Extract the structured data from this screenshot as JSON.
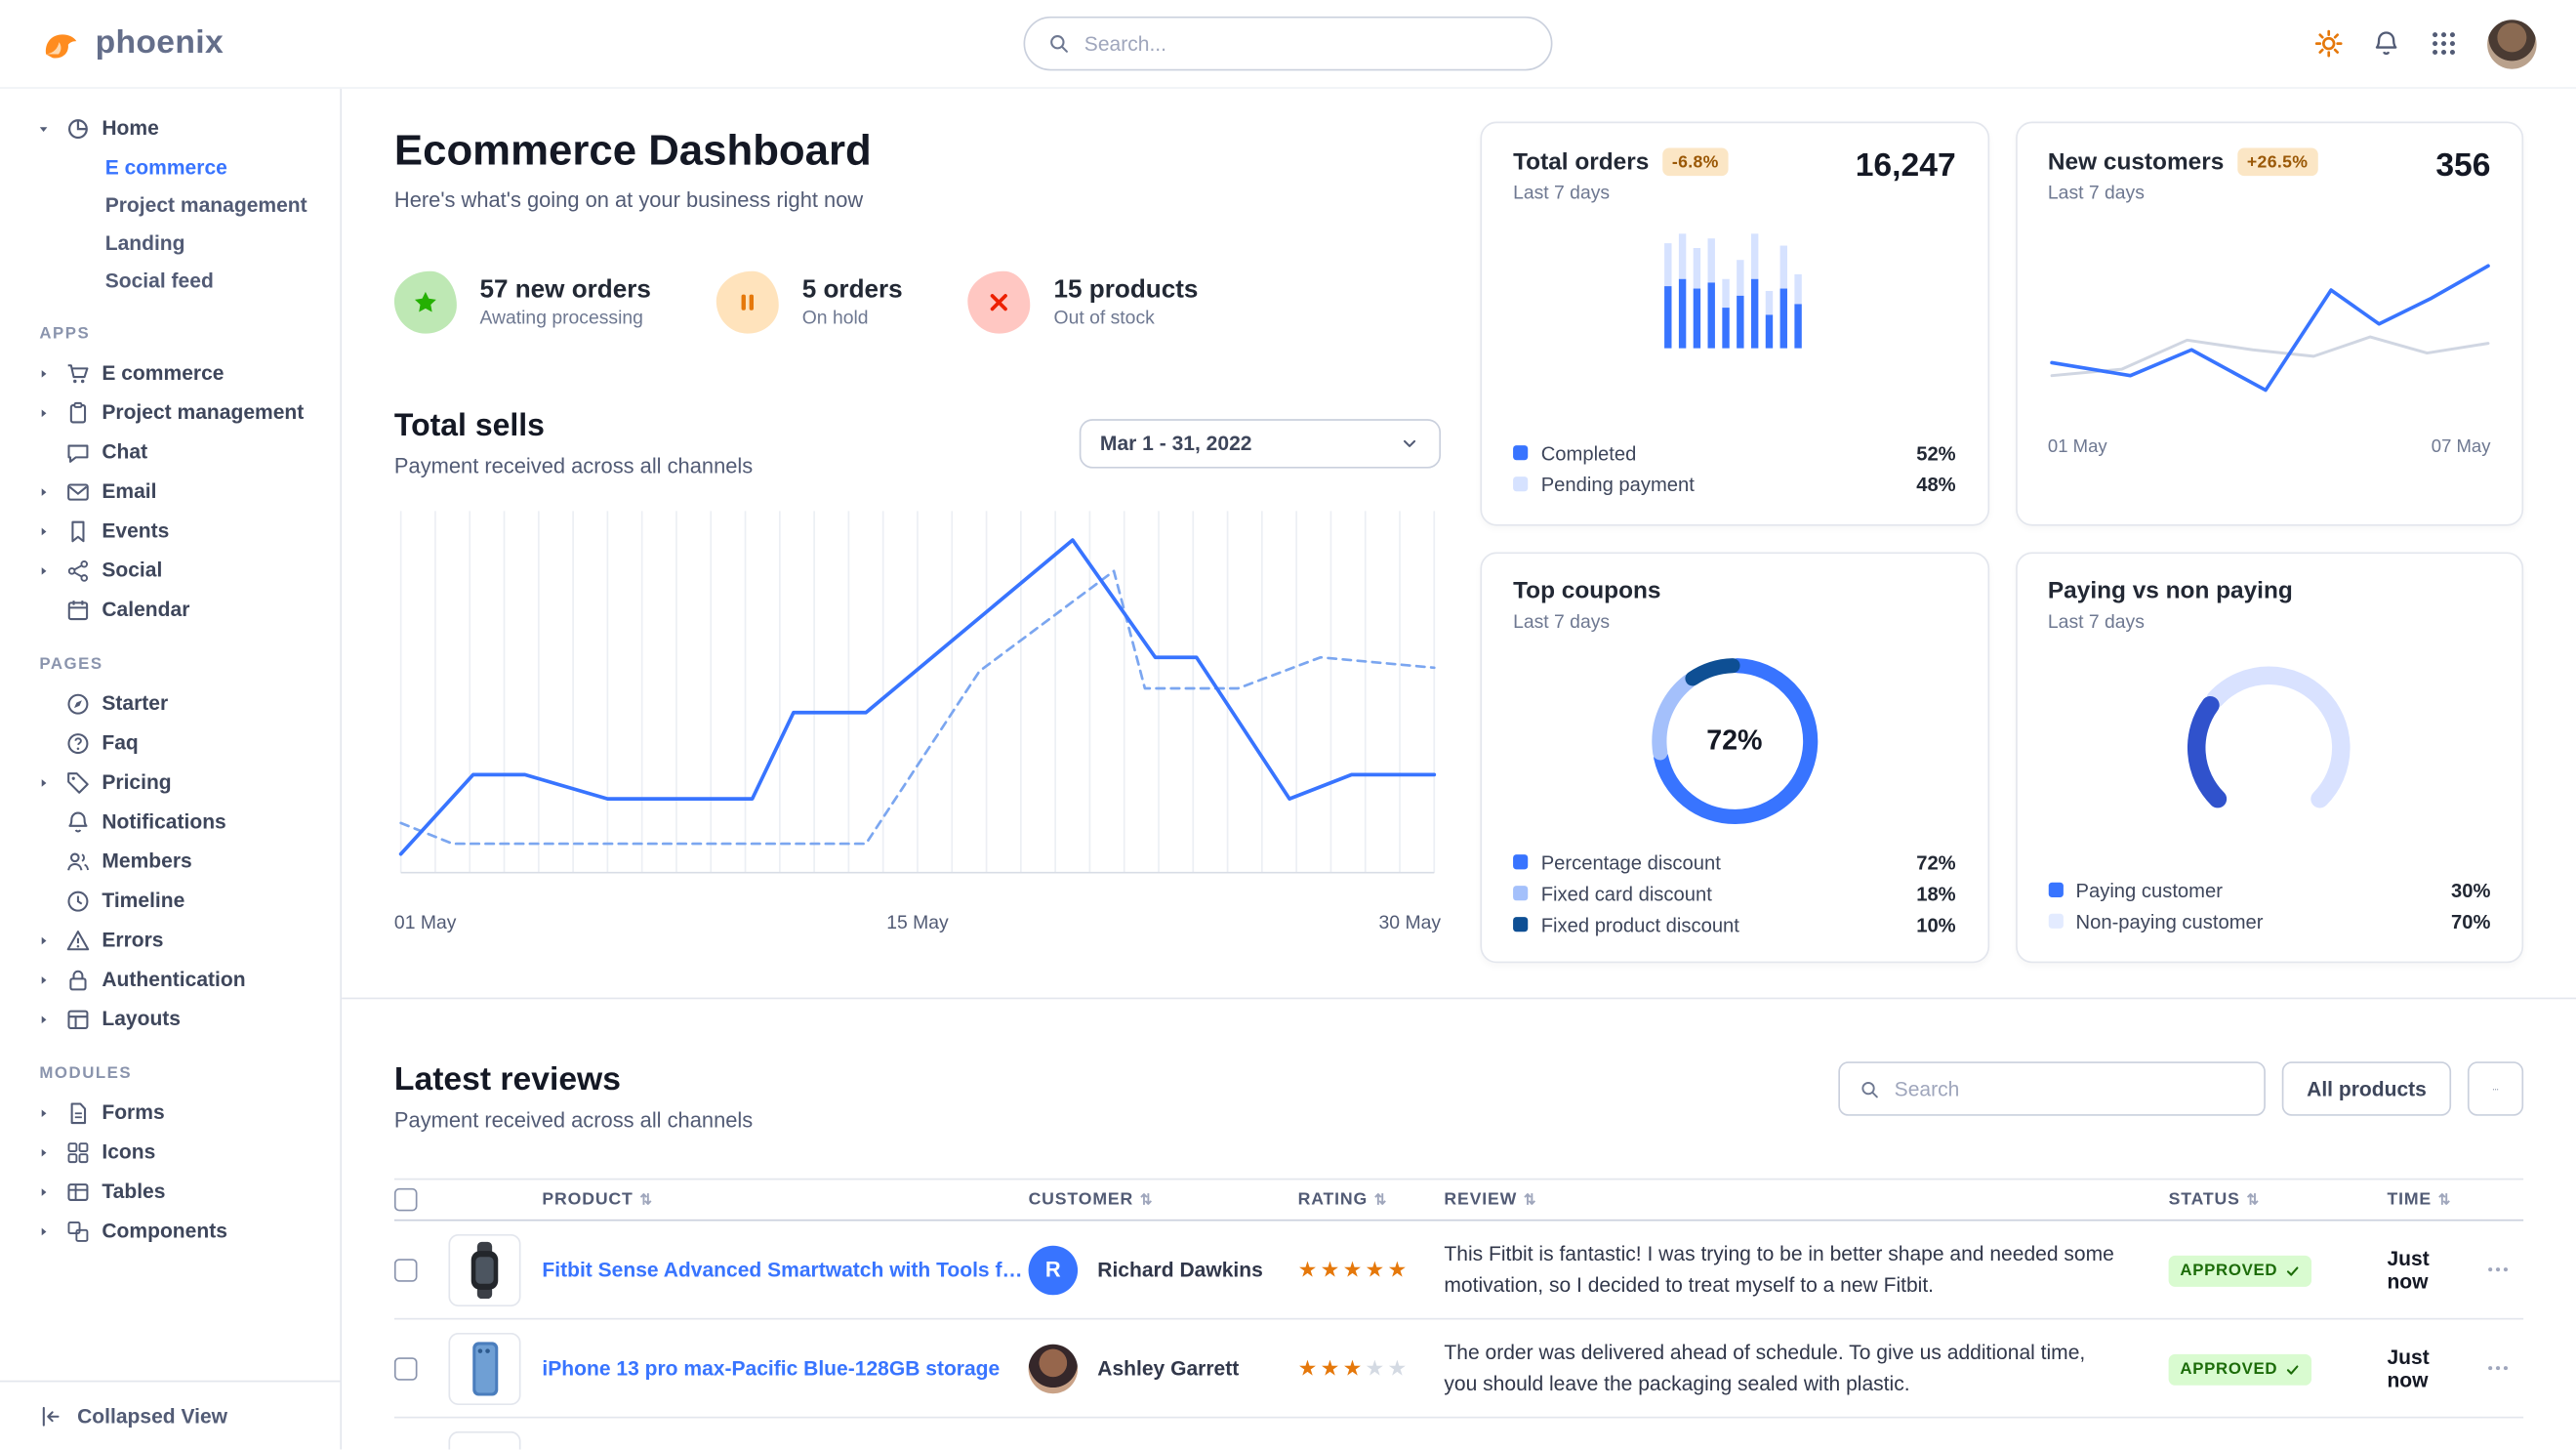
{
  "brand": {
    "name": "phoenix"
  },
  "topbar": {
    "search_placeholder": "Search...",
    "icons": {
      "theme": "sun",
      "notifications": "bell",
      "apps": "grid9",
      "profile": "avatar"
    }
  },
  "sidebar": {
    "home": {
      "label": "Home",
      "icon": "pie",
      "expanded": true,
      "children": [
        {
          "label": "E commerce",
          "active": true
        },
        {
          "label": "Project management",
          "active": false
        },
        {
          "label": "Landing",
          "active": false
        },
        {
          "label": "Social feed",
          "active": false
        }
      ]
    },
    "sections": [
      {
        "title": "APPS",
        "items": [
          {
            "label": "E commerce",
            "icon": "cart",
            "caret": true
          },
          {
            "label": "Project management",
            "icon": "clipboard",
            "caret": true
          },
          {
            "label": "Chat",
            "icon": "chat",
            "caret": false
          },
          {
            "label": "Email",
            "icon": "mail",
            "caret": true
          },
          {
            "label": "Events",
            "icon": "bookmark",
            "caret": true
          },
          {
            "label": "Social",
            "icon": "share",
            "caret": true
          },
          {
            "label": "Calendar",
            "icon": "calendar",
            "caret": false
          }
        ]
      },
      {
        "title": "PAGES",
        "items": [
          {
            "label": "Starter",
            "icon": "compass",
            "caret": false
          },
          {
            "label": "Faq",
            "icon": "help",
            "caret": false
          },
          {
            "label": "Pricing",
            "icon": "tag",
            "caret": true
          },
          {
            "label": "Notifications",
            "icon": "bell",
            "caret": false
          },
          {
            "label": "Members",
            "icon": "users",
            "caret": false
          },
          {
            "label": "Timeline",
            "icon": "clock",
            "caret": false
          },
          {
            "label": "Errors",
            "icon": "warning",
            "caret": true
          },
          {
            "label": "Authentication",
            "icon": "lock",
            "caret": true
          },
          {
            "label": "Layouts",
            "icon": "layout",
            "caret": true
          }
        ]
      },
      {
        "title": "MODULES",
        "items": [
          {
            "label": "Forms",
            "icon": "file",
            "caret": true
          },
          {
            "label": "Icons",
            "icon": "grid4",
            "caret": true
          },
          {
            "label": "Tables",
            "icon": "table",
            "caret": true
          },
          {
            "label": "Components",
            "icon": "components",
            "caret": true
          }
        ]
      }
    ],
    "collapsed_view_label": "Collapsed View"
  },
  "page": {
    "title": "Ecommerce Dashboard",
    "subtitle": "Here's what's going on at your business right now"
  },
  "stats": [
    {
      "title": "57 new orders",
      "subtitle": "Awating processing",
      "icon": "star",
      "icon_color": "#25b003",
      "bg": "#bee8b4"
    },
    {
      "title": "5 orders",
      "subtitle": "On hold",
      "icon": "pause",
      "icon_color": "#e5780b",
      "bg": "#ffe3bc"
    },
    {
      "title": "15 products",
      "subtitle": "Out of stock",
      "icon": "x",
      "icon_color": "#ed2000",
      "bg": "#ffc7c2"
    }
  ],
  "total_sells": {
    "title": "Total sells",
    "subtitle": "Payment received across all channels",
    "date_filter": "Mar 1 - 31, 2022",
    "x_labels": [
      "01 May",
      "15 May",
      "30 May"
    ]
  },
  "cards": {
    "total_orders": {
      "title": "Total orders",
      "badge": "-6.8%",
      "period": "Last 7 days",
      "value": "16,247",
      "legend": [
        {
          "label": "Completed",
          "value": "52%",
          "color": "#3874ff"
        },
        {
          "label": "Pending payment",
          "value": "48%",
          "color": "#d6e2ff"
        }
      ]
    },
    "new_customers": {
      "title": "New customers",
      "badge": "+26.5%",
      "period": "Last 7 days",
      "value": "356",
      "x_labels": [
        "01 May",
        "07 May"
      ]
    },
    "top_coupons": {
      "title": "Top coupons",
      "period": "Last 7 days",
      "center_value": "72%",
      "legend": [
        {
          "label": "Percentage discount",
          "value": "72%",
          "color": "#3874ff"
        },
        {
          "label": "Fixed card discount",
          "value": "18%",
          "color": "#a4c0fb"
        },
        {
          "label": "Fixed product discount",
          "value": "10%",
          "color": "#0e4f94"
        }
      ]
    },
    "paying": {
      "title": "Paying vs non paying",
      "period": "Last 7 days",
      "legend": [
        {
          "label": "Paying customer",
          "value": "30%",
          "color": "#3874ff"
        },
        {
          "label": "Non-paying customer",
          "value": "70%",
          "color": "#e3ebff"
        }
      ]
    }
  },
  "reviews": {
    "title": "Latest reviews",
    "subtitle": "Payment received across all channels",
    "search_placeholder": "Search",
    "filter_button": "All products",
    "columns": [
      "PRODUCT",
      "CUSTOMER",
      "RATING",
      "REVIEW",
      "STATUS",
      "TIME"
    ],
    "rows": [
      {
        "product": "Fitbit Sense Advanced Smartwatch with Tools fo...",
        "thumb": "watch",
        "customer": "Richard Dawkins",
        "avatar": {
          "type": "initial",
          "text": "R",
          "color": "#3874ff"
        },
        "rating": 5,
        "review": "This Fitbit is fantastic! I was trying to be in better shape and needed some motivation, so I decided to treat myself to a new Fitbit.",
        "status": "APPROVED",
        "time": "Just now"
      },
      {
        "product": "iPhone 13 pro max-Pacific Blue-128GB storage",
        "thumb": "phone",
        "customer": "Ashley Garrett",
        "avatar": {
          "type": "photo"
        },
        "rating": 3,
        "review": "The order was delivered ahead of schedule. To give us additional time, you should leave the packaging sealed with plastic.",
        "status": "APPROVED",
        "time": "Just now"
      },
      {
        "partial": true
      }
    ]
  },
  "chart_data": [
    {
      "id": "total-sells",
      "type": "line",
      "title": "Total sells",
      "x_tick_labels": [
        "01 May",
        "15 May",
        "30 May"
      ],
      "grid": "vertical",
      "y_scale": "relative 0-100",
      "series": [
        {
          "name": "current period",
          "style": "solid",
          "color": "#3874ff",
          "points": [
            [
              0,
              3
            ],
            [
              7,
              26
            ],
            [
              12,
              26
            ],
            [
              20,
              19
            ],
            [
              34,
              19
            ],
            [
              38,
              44
            ],
            [
              45,
              44
            ],
            [
              65,
              94
            ],
            [
              73,
              60
            ],
            [
              77,
              60
            ],
            [
              86,
              19
            ],
            [
              92,
              26
            ],
            [
              100,
              26
            ]
          ]
        },
        {
          "name": "previous period",
          "style": "dashed",
          "color": "#7ba6f0",
          "points": [
            [
              0,
              12
            ],
            [
              5,
              6
            ],
            [
              13,
              6
            ],
            [
              45,
              6
            ],
            [
              56,
              56
            ],
            [
              69,
              85
            ],
            [
              72,
              51
            ],
            [
              81,
              51
            ],
            [
              89,
              60
            ],
            [
              100,
              57
            ]
          ]
        }
      ]
    },
    {
      "id": "total-orders",
      "type": "bar",
      "title": "Total orders",
      "stacked": true,
      "bars_total": [
        88,
        96,
        84,
        92,
        58,
        74,
        96,
        48,
        86,
        62
      ],
      "bars_completed": [
        52,
        58,
        50,
        55,
        34,
        44,
        58,
        28,
        50,
        37
      ],
      "colors": {
        "completed": "#3874ff",
        "pending": "#d6e2ff"
      },
      "summary": {
        "completed_pct": 52,
        "pending_pct": 48,
        "total": 16247,
        "change_pct": -6.8
      }
    },
    {
      "id": "new-customers",
      "type": "line",
      "title": "New customers",
      "x_tick_labels": [
        "01 May",
        "07 May"
      ],
      "y_scale": "relative 0-100",
      "series": [
        {
          "name": "current",
          "color": "#3874ff",
          "points": [
            [
              0,
              36
            ],
            [
              18,
              28
            ],
            [
              32,
              44
            ],
            [
              49,
              19
            ],
            [
              64,
              81
            ],
            [
              75,
              60
            ],
            [
              87,
              76
            ],
            [
              100,
              96
            ]
          ]
        },
        {
          "name": "previous",
          "color": "#d0d6e2",
          "points": [
            [
              0,
              28
            ],
            [
              16,
              32
            ],
            [
              31,
              50
            ],
            [
              46,
              44
            ],
            [
              60,
              40
            ],
            [
              73,
              52
            ],
            [
              86,
              42
            ],
            [
              100,
              48
            ]
          ]
        }
      ],
      "summary": {
        "total": 356,
        "change_pct": 26.5
      }
    },
    {
      "id": "top-coupons",
      "type": "donut",
      "title": "Top coupons",
      "labels": [
        "Percentage discount",
        "Fixed card discount",
        "Fixed product discount"
      ],
      "values": [
        72,
        18,
        10
      ],
      "colors": [
        "#3874ff",
        "#a4c0fb",
        "#0e4f94"
      ],
      "center_label": "72%"
    },
    {
      "id": "paying-vs-non-paying",
      "type": "gauge",
      "title": "Paying vs non paying",
      "labels": [
        "Paying customer",
        "Non-paying customer"
      ],
      "values": [
        30,
        70
      ],
      "colors": [
        "#3052cc",
        "#d9e2ff"
      ]
    }
  ]
}
